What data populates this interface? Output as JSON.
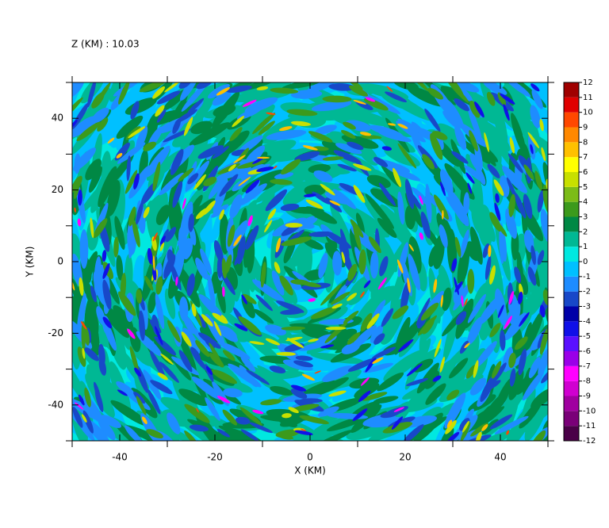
{
  "chart_data": {
    "type": "contour",
    "title": "Z (KM) : 10.03",
    "x_label": "X (KM)",
    "y_label": "Y (KM)",
    "xlim": [
      -50,
      50
    ],
    "ylim": [
      -50,
      50
    ],
    "xticks": [
      -40,
      -20,
      0,
      20,
      40
    ],
    "yticks": [
      -40,
      -20,
      0,
      20,
      40
    ],
    "xticks_minor": [
      -50,
      -30,
      -10,
      10,
      30,
      50
    ],
    "yticks_minor": [
      -50,
      -30,
      -10,
      10,
      30,
      50
    ],
    "colorbar": {
      "levels": [
        -12,
        -11,
        -10,
        -9,
        -8,
        -7,
        -6,
        -5,
        -4,
        -3,
        -2,
        -1,
        0,
        1,
        2,
        3,
        4,
        5,
        6,
        7,
        8,
        9,
        10,
        11,
        12
      ],
      "colors": [
        "#4a0048",
        "#7a0078",
        "#a000a0",
        "#d000d0",
        "#ff00ff",
        "#9a00e8",
        "#5a10ff",
        "#1010e8",
        "#0000a8",
        "#1848c8",
        "#1e8cff",
        "#00c0ff",
        "#00e8e0",
        "#00b894",
        "#008844",
        "#3c9a1c",
        "#7cbc18",
        "#c8e000",
        "#ffff00",
        "#ffc000",
        "#ff8800",
        "#ff4800",
        "#e00000",
        "#a00000"
      ]
    }
  }
}
